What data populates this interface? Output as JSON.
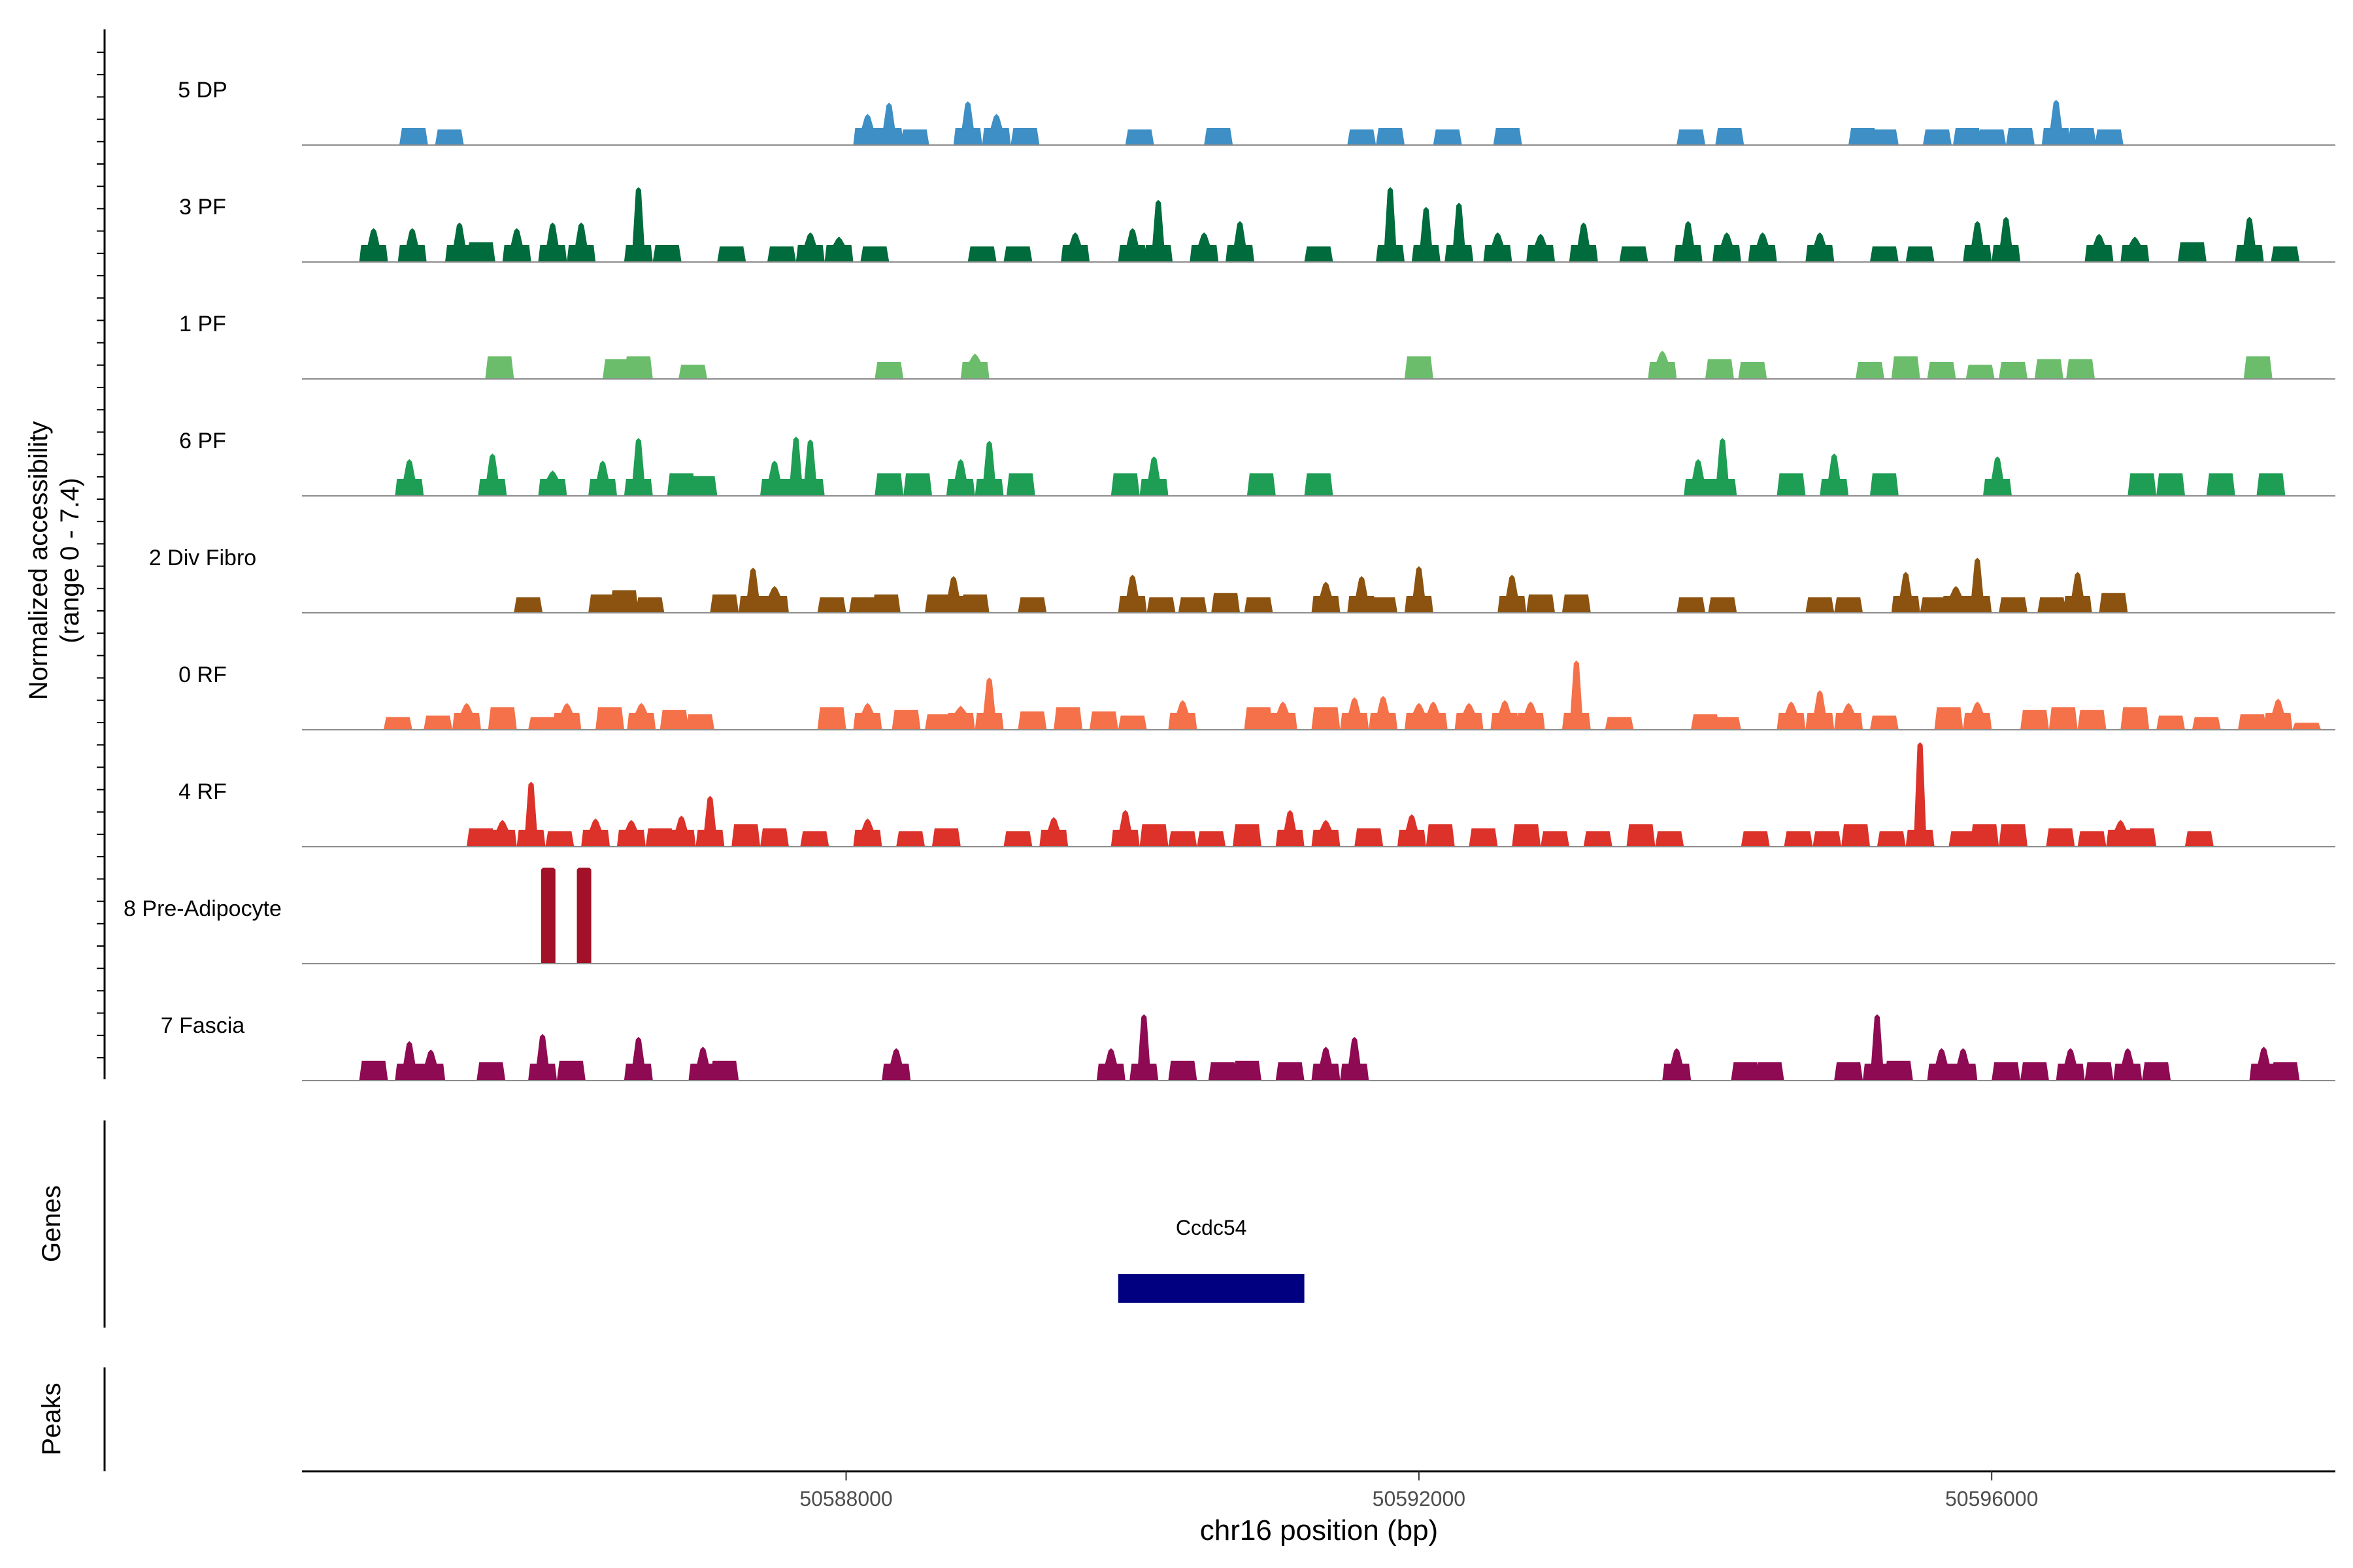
{
  "chart_data": {
    "type": "coverage",
    "y_axis_label_line1": "Normalized accessibility",
    "y_axis_label_line2": "(range 0 - 7.4)",
    "y_range": [
      0,
      7.4
    ],
    "xlabel": "chr16 position (bp)",
    "xlim": [
      50584200,
      50598400
    ],
    "x_ticks": [
      {
        "value": 50588000,
        "label": "50588000"
      },
      {
        "value": 50592000,
        "label": "50592000"
      },
      {
        "value": 50596000,
        "label": "50596000"
      }
    ],
    "tracks": [
      {
        "name": "5 DP",
        "color": "#3d8fc6",
        "peaks": [
          [
            50584980,
            1.2
          ],
          [
            50585230,
            1.1
          ],
          [
            50588150,
            2.2
          ],
          [
            50588300,
            3.0
          ],
          [
            50588480,
            1.1
          ],
          [
            50588850,
            3.1
          ],
          [
            50589050,
            2.2
          ],
          [
            50589250,
            1.2
          ],
          [
            50590050,
            1.1
          ],
          [
            50590600,
            1.2
          ],
          [
            50591600,
            1.1
          ],
          [
            50591800,
            1.2
          ],
          [
            50592200,
            1.1
          ],
          [
            50592620,
            1.2
          ],
          [
            50593900,
            1.1
          ],
          [
            50594170,
            1.2
          ],
          [
            50595100,
            1.2
          ],
          [
            50595250,
            1.1
          ],
          [
            50595620,
            1.1
          ],
          [
            50595830,
            1.2
          ],
          [
            50596000,
            1.1
          ],
          [
            50596200,
            1.2
          ],
          [
            50596450,
            3.2
          ],
          [
            50596630,
            1.2
          ],
          [
            50596820,
            1.1
          ]
        ]
      },
      {
        "name": "3 PF",
        "color": "#006b3c",
        "peaks": [
          [
            50584700,
            2.4
          ],
          [
            50584970,
            2.4
          ],
          [
            50585300,
            2.8
          ],
          [
            50585450,
            1.4
          ],
          [
            50585700,
            2.4
          ],
          [
            50585950,
            2.8
          ],
          [
            50586150,
            2.8
          ],
          [
            50586550,
            5.3
          ],
          [
            50586750,
            1.2
          ],
          [
            50587200,
            1.1
          ],
          [
            50587550,
            1.1
          ],
          [
            50587750,
            2.1
          ],
          [
            50587950,
            1.8
          ],
          [
            50588200,
            1.1
          ],
          [
            50588950,
            1.1
          ],
          [
            50589200,
            1.1
          ],
          [
            50589600,
            2.1
          ],
          [
            50590000,
            2.4
          ],
          [
            50590180,
            4.4
          ],
          [
            50590500,
            2.1
          ],
          [
            50590750,
            2.9
          ],
          [
            50591300,
            1.1
          ],
          [
            50591800,
            5.3
          ],
          [
            50592050,
            3.9
          ],
          [
            50592280,
            4.2
          ],
          [
            50592550,
            2.1
          ],
          [
            50592850,
            2.0
          ],
          [
            50593150,
            2.8
          ],
          [
            50593500,
            1.1
          ],
          [
            50593880,
            2.9
          ],
          [
            50594150,
            2.1
          ],
          [
            50594400,
            2.1
          ],
          [
            50594800,
            2.1
          ],
          [
            50595250,
            1.1
          ],
          [
            50595500,
            1.1
          ],
          [
            50595900,
            2.9
          ],
          [
            50596100,
            3.2
          ],
          [
            50596750,
            2.0
          ],
          [
            50597000,
            1.8
          ],
          [
            50597400,
            1.4
          ],
          [
            50597800,
            3.2
          ],
          [
            50598050,
            1.1
          ]
        ]
      },
      {
        "name": "1 PF",
        "color": "#6bbd6b",
        "peaks": [
          [
            50585580,
            1.6
          ],
          [
            50586400,
            1.4
          ],
          [
            50586550,
            1.6
          ],
          [
            50586930,
            1.0
          ],
          [
            50588300,
            1.2
          ],
          [
            50588900,
            1.8
          ],
          [
            50592000,
            1.6
          ],
          [
            50593700,
            2.0
          ],
          [
            50594100,
            1.4
          ],
          [
            50594330,
            1.2
          ],
          [
            50595150,
            1.2
          ],
          [
            50595400,
            1.6
          ],
          [
            50595650,
            1.2
          ],
          [
            50595920,
            1.0
          ],
          [
            50596150,
            1.2
          ],
          [
            50596400,
            1.4
          ],
          [
            50596620,
            1.4
          ],
          [
            50597860,
            1.6
          ]
        ]
      },
      {
        "name": "6 PF",
        "color": "#1e9e54",
        "peaks": [
          [
            50584950,
            2.6
          ],
          [
            50585530,
            3.0
          ],
          [
            50585950,
            1.8
          ],
          [
            50586300,
            2.5
          ],
          [
            50586550,
            4.1
          ],
          [
            50586850,
            1.6
          ],
          [
            50587000,
            1.4
          ],
          [
            50587500,
            2.5
          ],
          [
            50587650,
            4.2
          ],
          [
            50587750,
            4.0
          ],
          [
            50588300,
            1.6
          ],
          [
            50588500,
            1.6
          ],
          [
            50588800,
            2.6
          ],
          [
            50589000,
            3.9
          ],
          [
            50589220,
            1.6
          ],
          [
            50589950,
            1.6
          ],
          [
            50590150,
            2.8
          ],
          [
            50590900,
            1.6
          ],
          [
            50591300,
            1.6
          ],
          [
            50593950,
            2.6
          ],
          [
            50594120,
            4.1
          ],
          [
            50594600,
            1.6
          ],
          [
            50594900,
            3.0
          ],
          [
            50595250,
            1.6
          ],
          [
            50596040,
            2.8
          ],
          [
            50597050,
            1.6
          ],
          [
            50597250,
            1.6
          ],
          [
            50597600,
            1.6
          ],
          [
            50597950,
            1.6
          ]
        ]
      },
      {
        "name": "2 Div Fibro",
        "color": "#8c5310",
        "peaks": [
          [
            50585780,
            1.1
          ],
          [
            50586300,
            1.3
          ],
          [
            50586450,
            1.6
          ],
          [
            50586630,
            1.1
          ],
          [
            50587150,
            1.3
          ],
          [
            50587350,
            3.2
          ],
          [
            50587500,
            1.9
          ],
          [
            50587900,
            1.1
          ],
          [
            50588120,
            1.1
          ],
          [
            50588280,
            1.3
          ],
          [
            50588650,
            1.3
          ],
          [
            50588750,
            2.6
          ],
          [
            50588900,
            1.3
          ],
          [
            50589300,
            1.1
          ],
          [
            50590000,
            2.7
          ],
          [
            50590200,
            1.1
          ],
          [
            50590420,
            1.1
          ],
          [
            50590650,
            1.4
          ],
          [
            50590880,
            1.1
          ],
          [
            50591350,
            2.2
          ],
          [
            50591600,
            2.6
          ],
          [
            50591750,
            1.1
          ],
          [
            50592000,
            3.3
          ],
          [
            50592650,
            2.7
          ],
          [
            50592850,
            1.3
          ],
          [
            50593100,
            1.3
          ],
          [
            50593900,
            1.1
          ],
          [
            50594120,
            1.1
          ],
          [
            50594800,
            1.1
          ],
          [
            50595000,
            1.1
          ],
          [
            50595400,
            2.9
          ],
          [
            50595600,
            1.1
          ],
          [
            50595750,
            1.9
          ],
          [
            50595900,
            3.9
          ],
          [
            50596150,
            1.1
          ],
          [
            50596420,
            1.1
          ],
          [
            50596600,
            2.9
          ],
          [
            50596850,
            1.4
          ]
        ]
      },
      {
        "name": "0 RF",
        "color": "#f4714a",
        "peaks": [
          [
            50584870,
            0.9
          ],
          [
            50585150,
            1.0
          ],
          [
            50585350,
            1.9
          ],
          [
            50585600,
            1.6
          ],
          [
            50585880,
            0.9
          ],
          [
            50586050,
            1.9
          ],
          [
            50586350,
            1.6
          ],
          [
            50586570,
            1.9
          ],
          [
            50586800,
            1.4
          ],
          [
            50586980,
            1.1
          ],
          [
            50587900,
            1.6
          ],
          [
            50588150,
            1.9
          ],
          [
            50588420,
            1.4
          ],
          [
            50588650,
            1.1
          ],
          [
            50588800,
            1.7
          ],
          [
            50589000,
            3.7
          ],
          [
            50589300,
            1.3
          ],
          [
            50589550,
            1.6
          ],
          [
            50589800,
            1.3
          ],
          [
            50590000,
            1.0
          ],
          [
            50590350,
            2.1
          ],
          [
            50590880,
            1.6
          ],
          [
            50591050,
            2.0
          ],
          [
            50591350,
            1.6
          ],
          [
            50591550,
            2.3
          ],
          [
            50591750,
            2.4
          ],
          [
            50592000,
            1.9
          ],
          [
            50592100,
            2.0
          ],
          [
            50592350,
            1.9
          ],
          [
            50592600,
            2.1
          ],
          [
            50592780,
            2.0
          ],
          [
            50593100,
            4.9
          ],
          [
            50593400,
            0.9
          ],
          [
            50594000,
            1.1
          ],
          [
            50594150,
            0.9
          ],
          [
            50594600,
            2.0
          ],
          [
            50594800,
            2.8
          ],
          [
            50595000,
            1.9
          ],
          [
            50595250,
            1.0
          ],
          [
            50595700,
            1.6
          ],
          [
            50595900,
            2.0
          ],
          [
            50596300,
            1.4
          ],
          [
            50596500,
            1.6
          ],
          [
            50596700,
            1.4
          ],
          [
            50597000,
            1.6
          ],
          [
            50597250,
            1.0
          ],
          [
            50597500,
            0.9
          ],
          [
            50597820,
            1.1
          ],
          [
            50598000,
            2.2
          ],
          [
            50598200,
            0.5
          ]
        ]
      },
      {
        "name": "4 RF",
        "color": "#dc3229",
        "peaks": [
          [
            50585450,
            1.3
          ],
          [
            50585600,
            1.9
          ],
          [
            50585800,
            4.6
          ],
          [
            50586000,
            1.1
          ],
          [
            50586250,
            2.0
          ],
          [
            50586500,
            1.9
          ],
          [
            50586700,
            1.3
          ],
          [
            50586850,
            2.2
          ],
          [
            50587050,
            3.6
          ],
          [
            50587300,
            1.6
          ],
          [
            50587500,
            1.3
          ],
          [
            50587780,
            1.1
          ],
          [
            50588150,
            2.0
          ],
          [
            50588450,
            1.1
          ],
          [
            50588700,
            1.3
          ],
          [
            50589200,
            1.1
          ],
          [
            50589450,
            2.1
          ],
          [
            50589950,
            2.6
          ],
          [
            50590150,
            1.6
          ],
          [
            50590350,
            1.1
          ],
          [
            50590550,
            1.1
          ],
          [
            50590800,
            1.6
          ],
          [
            50591100,
            2.6
          ],
          [
            50591350,
            1.9
          ],
          [
            50591650,
            1.3
          ],
          [
            50591950,
            2.3
          ],
          [
            50592150,
            1.6
          ],
          [
            50592450,
            1.3
          ],
          [
            50592750,
            1.6
          ],
          [
            50592950,
            1.1
          ],
          [
            50593250,
            1.1
          ],
          [
            50593550,
            1.6
          ],
          [
            50593750,
            1.1
          ],
          [
            50594350,
            1.1
          ],
          [
            50594650,
            1.1
          ],
          [
            50594850,
            1.1
          ],
          [
            50595050,
            1.6
          ],
          [
            50595300,
            1.1
          ],
          [
            50595500,
            7.4
          ],
          [
            50595800,
            1.1
          ],
          [
            50595950,
            1.6
          ],
          [
            50596150,
            1.6
          ],
          [
            50596480,
            1.3
          ],
          [
            50596700,
            1.1
          ],
          [
            50596900,
            1.9
          ],
          [
            50597050,
            1.3
          ],
          [
            50597450,
            1.1
          ]
        ]
      },
      {
        "name": "8 Pre-Adipocyte",
        "color": "#a31129",
        "peaks": [
          [
            50585920,
            6.8
          ],
          [
            50586170,
            6.8
          ]
        ]
      },
      {
        "name": "7 Fascia",
        "color": "#8e0a52",
        "peaks": [
          [
            50584700,
            1.4
          ],
          [
            50584950,
            2.8
          ],
          [
            50585100,
            2.2
          ],
          [
            50585520,
            1.3
          ],
          [
            50585880,
            3.3
          ],
          [
            50586080,
            1.4
          ],
          [
            50586550,
            3.1
          ],
          [
            50587000,
            2.4
          ],
          [
            50587150,
            1.4
          ],
          [
            50588350,
            2.3
          ],
          [
            50589850,
            2.3
          ],
          [
            50590080,
            4.7
          ],
          [
            50590350,
            1.4
          ],
          [
            50590630,
            1.3
          ],
          [
            50590800,
            1.4
          ],
          [
            50591100,
            1.3
          ],
          [
            50591350,
            2.4
          ],
          [
            50591550,
            3.1
          ],
          [
            50593800,
            2.3
          ],
          [
            50594280,
            1.3
          ],
          [
            50594450,
            1.3
          ],
          [
            50595000,
            1.3
          ],
          [
            50595200,
            4.7
          ],
          [
            50595350,
            1.4
          ],
          [
            50595650,
            2.3
          ],
          [
            50595800,
            2.3
          ],
          [
            50596100,
            1.3
          ],
          [
            50596300,
            1.3
          ],
          [
            50596550,
            2.3
          ],
          [
            50596750,
            1.3
          ],
          [
            50596950,
            2.3
          ],
          [
            50597150,
            1.3
          ],
          [
            50597900,
            2.4
          ],
          [
            50598050,
            1.3
          ]
        ]
      }
    ],
    "genes_panel_label": "Genes",
    "genes": [
      {
        "name": "Ccdc54",
        "start": 50589900,
        "end": 50591200,
        "color": "#000080"
      }
    ],
    "peaks_panel_label": "Peaks"
  }
}
